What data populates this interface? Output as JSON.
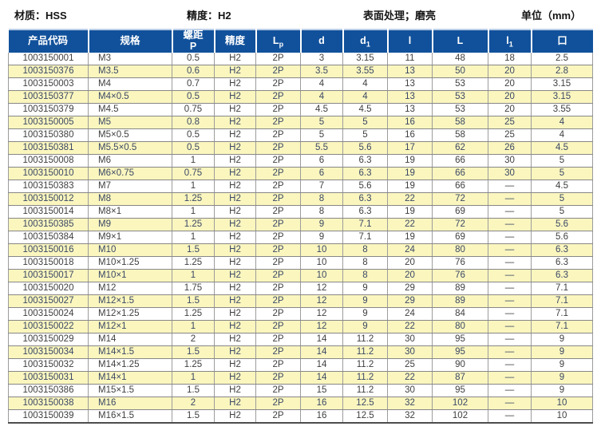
{
  "info": {
    "material": "材质：HSS",
    "precision": "精度：H2",
    "surface": "表面处理；磨亮",
    "unit": "单位（mm）"
  },
  "colors": {
    "header_bg": "#11519b",
    "header_text": "#ffffff",
    "alt_row_bg": "#fbf6be",
    "alt_row_text": "#3a4866",
    "row_text": "#3f3f3f"
  },
  "table": {
    "columns": [
      {
        "id": "product-code",
        "label": "产品代码"
      },
      {
        "id": "spec",
        "label": "规格"
      },
      {
        "id": "pitch",
        "label": "螺距\nP"
      },
      {
        "id": "precision",
        "label": "精度"
      },
      {
        "id": "lp",
        "label": "L",
        "sub": "p"
      },
      {
        "id": "d",
        "label": "d"
      },
      {
        "id": "d1",
        "label": "d",
        "sub": "1"
      },
      {
        "id": "l",
        "label": "l"
      },
      {
        "id": "l-cap",
        "label": "L"
      },
      {
        "id": "l1",
        "label": "l",
        "sub": "1"
      },
      {
        "id": "square",
        "label": "口"
      }
    ],
    "rows": [
      [
        "1003150001",
        "M3",
        "0.5",
        "H2",
        "2P",
        "3",
        "3.15",
        "11",
        "48",
        "18",
        "2.5"
      ],
      [
        "1003150376",
        "M3.5",
        "0.6",
        "H2",
        "2P",
        "3.5",
        "3.55",
        "13",
        "50",
        "20",
        "2.8"
      ],
      [
        "1003150003",
        "M4",
        "0.7",
        "H2",
        "2P",
        "4",
        "4",
        "13",
        "53",
        "20",
        "3.15"
      ],
      [
        "1003150377",
        "M4×0.5",
        "0.5",
        "H2",
        "2P",
        "4",
        "4",
        "13",
        "53",
        "20",
        "3.15"
      ],
      [
        "1003150379",
        "M4.5",
        "0.75",
        "H2",
        "2P",
        "4.5",
        "4.5",
        "13",
        "53",
        "20",
        "3.55"
      ],
      [
        "1003150005",
        "M5",
        "0.8",
        "H2",
        "2P",
        "5",
        "5",
        "16",
        "58",
        "25",
        "4"
      ],
      [
        "1003150380",
        "M5×0.5",
        "0.5",
        "H2",
        "2P",
        "5",
        "5",
        "16",
        "58",
        "25",
        "4"
      ],
      [
        "1003150381",
        "M5.5×0.5",
        "0.5",
        "H2",
        "2P",
        "5.5",
        "5.6",
        "17",
        "62",
        "26",
        "4.5"
      ],
      [
        "1003150008",
        "M6",
        "1",
        "H2",
        "2P",
        "6",
        "6.3",
        "19",
        "66",
        "30",
        "5"
      ],
      [
        "1003150010",
        "M6×0.75",
        "0.75",
        "H2",
        "2P",
        "6",
        "6.3",
        "19",
        "66",
        "30",
        "5"
      ],
      [
        "1003150383",
        "M7",
        "1",
        "H2",
        "2P",
        "7",
        "5.6",
        "19",
        "66",
        "—",
        "4.5"
      ],
      [
        "1003150012",
        "M8",
        "1.25",
        "H2",
        "2P",
        "8",
        "6.3",
        "22",
        "72",
        "—",
        "5"
      ],
      [
        "1003150014",
        "M8×1",
        "1",
        "H2",
        "2P",
        "8",
        "6.3",
        "19",
        "69",
        "—",
        "5"
      ],
      [
        "1003150385",
        "M9",
        "1.25",
        "H2",
        "2P",
        "9",
        "7.1",
        "22",
        "72",
        "—",
        "5.6"
      ],
      [
        "1003150384",
        "M9×1",
        "1",
        "H2",
        "2P",
        "9",
        "7.1",
        "19",
        "69",
        "—",
        "5.6"
      ],
      [
        "1003150016",
        "M10",
        "1.5",
        "H2",
        "2P",
        "10",
        "8",
        "24",
        "80",
        "—",
        "6.3"
      ],
      [
        "1003150018",
        "M10×1.25",
        "1.25",
        "H2",
        "2P",
        "10",
        "8",
        "20",
        "76",
        "—",
        "6.3"
      ],
      [
        "1003150017",
        "M10×1",
        "1",
        "H2",
        "2P",
        "10",
        "8",
        "20",
        "76",
        "—",
        "6.3"
      ],
      [
        "1003150020",
        "M12",
        "1.75",
        "H2",
        "2P",
        "12",
        "9",
        "29",
        "89",
        "—",
        "7.1"
      ],
      [
        "1003150027",
        "M12×1.5",
        "1.5",
        "H2",
        "2P",
        "12",
        "9",
        "29",
        "89",
        "—",
        "7.1"
      ],
      [
        "1003150024",
        "M12×1.25",
        "1.25",
        "H2",
        "2P",
        "12",
        "9",
        "24",
        "84",
        "—",
        "7.1"
      ],
      [
        "1003150022",
        "M12×1",
        "1",
        "H2",
        "2P",
        "12",
        "9",
        "22",
        "80",
        "—",
        "7.1"
      ],
      [
        "1003150029",
        "M14",
        "2",
        "H2",
        "2P",
        "14",
        "11.2",
        "30",
        "95",
        "—",
        "9"
      ],
      [
        "1003150034",
        "M14×1.5",
        "1.5",
        "H2",
        "2P",
        "14",
        "11.2",
        "30",
        "95",
        "—",
        "9"
      ],
      [
        "1003150032",
        "M14×1.25",
        "1.25",
        "H2",
        "2P",
        "14",
        "11.2",
        "25",
        "90",
        "—",
        "9"
      ],
      [
        "1003150031",
        "M14×1",
        "1",
        "H2",
        "2P",
        "14",
        "11.2",
        "22",
        "87",
        "—",
        "9"
      ],
      [
        "1003150386",
        "M15×1.5",
        "1.5",
        "H2",
        "2P",
        "15",
        "11.2",
        "30",
        "95",
        "—",
        "9"
      ],
      [
        "1003150038",
        "M16",
        "2",
        "H2",
        "2P",
        "16",
        "12.5",
        "32",
        "102",
        "—",
        "10"
      ],
      [
        "1003150039",
        "M16×1.5",
        "1.5",
        "H2",
        "2P",
        "16",
        "12.5",
        "32",
        "102",
        "—",
        "10"
      ]
    ]
  }
}
